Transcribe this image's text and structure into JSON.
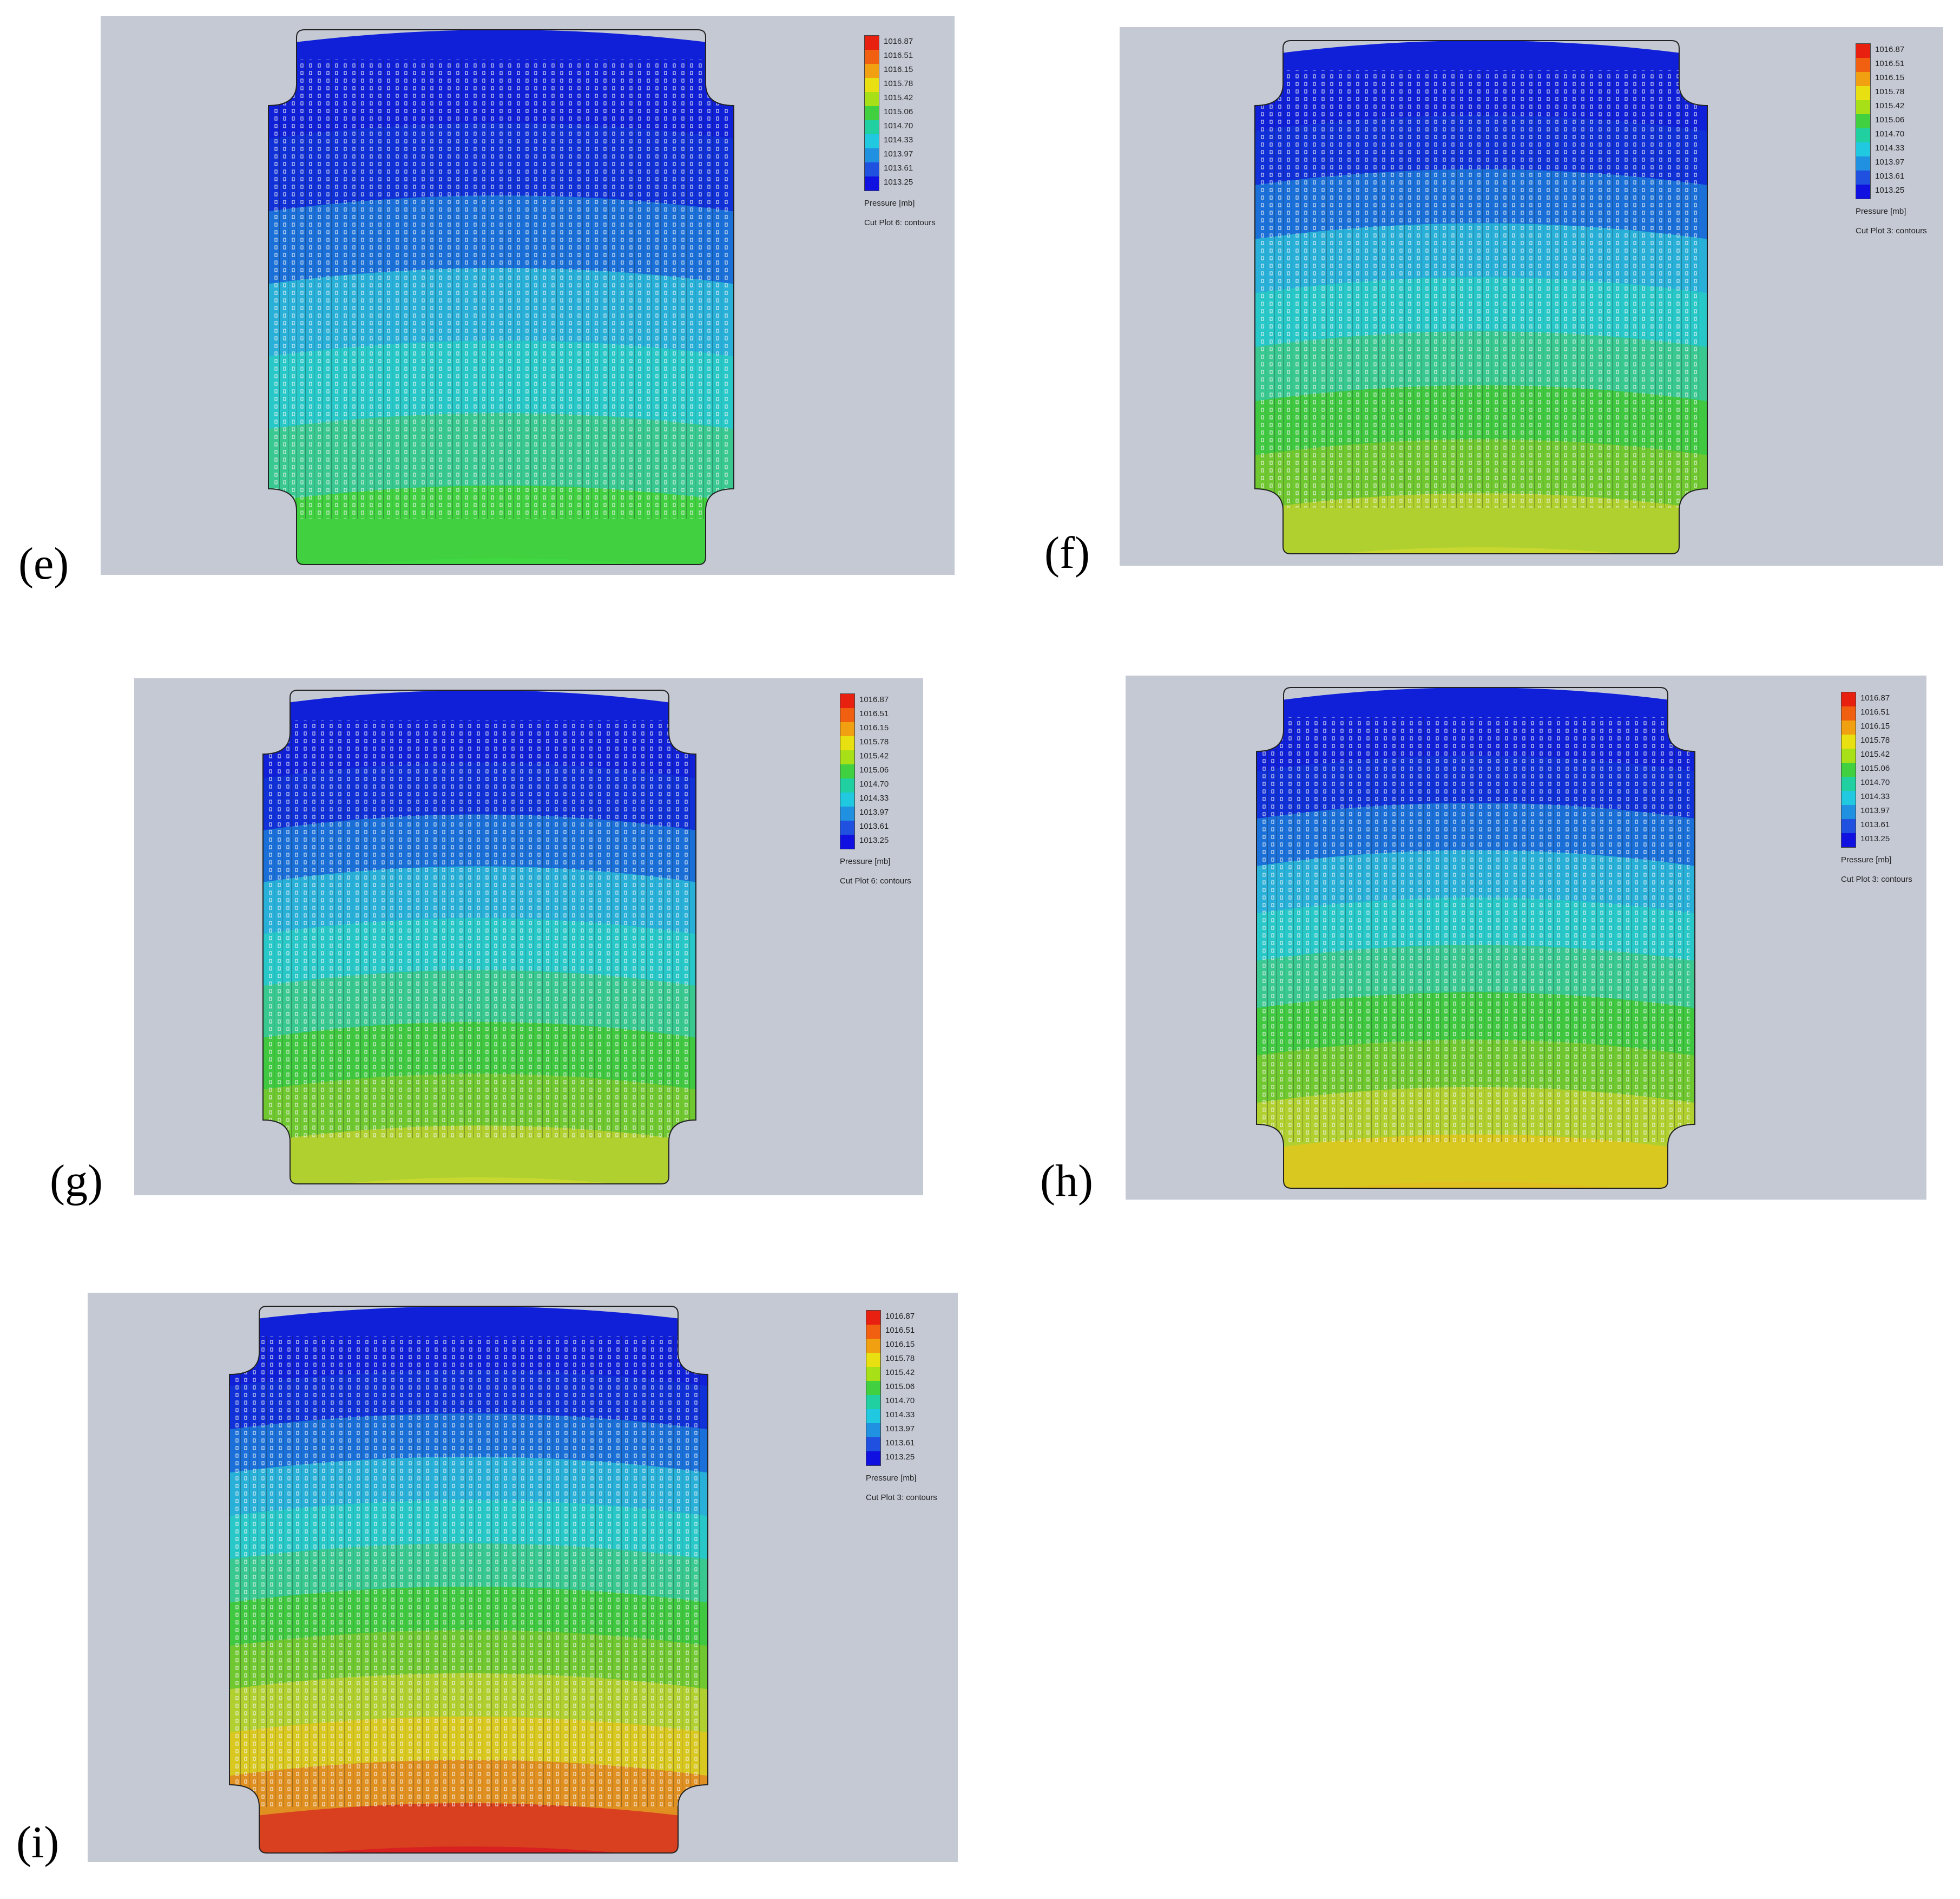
{
  "figure": {
    "panels": [
      {
        "id": "e",
        "label": "(e)",
        "legend_title": "Pressure [mb]",
        "plot_name": "Cut Plot 6: contours",
        "bands": [
          "#1020d8",
          "#1030d8",
          "#1a70d8",
          "#28b0d8",
          "#28c8c8",
          "#38c890",
          "#40d040",
          "#40d840"
        ]
      },
      {
        "id": "f",
        "label": "(f)",
        "legend_title": "Pressure [mb]",
        "plot_name": "Cut Plot 3: contours",
        "bands": [
          "#1020d8",
          "#1030d8",
          "#1a70d8",
          "#28b0d8",
          "#28c8c8",
          "#38c890",
          "#40c840",
          "#70c830",
          "#b0d030",
          "#c8d830"
        ]
      },
      {
        "id": "g",
        "label": "(g)",
        "legend_title": "Pressure [mb]",
        "plot_name": "Cut Plot 6: contours",
        "bands": [
          "#1020d8",
          "#1030d8",
          "#1a70d8",
          "#28b0d8",
          "#28c8c8",
          "#38c890",
          "#40c840",
          "#70c830",
          "#b0d030",
          "#c8d830"
        ]
      },
      {
        "id": "h",
        "label": "(h)",
        "legend_title": "Pressure [mb]",
        "plot_name": "Cut Plot 3: contours",
        "bands": [
          "#1020d8",
          "#1030d8",
          "#1a70d8",
          "#28b0d8",
          "#28c8c8",
          "#38c890",
          "#40c840",
          "#70c830",
          "#b0d030",
          "#d8c820",
          "#e0c020"
        ]
      },
      {
        "id": "i",
        "label": "(i)",
        "legend_title": "Pressure [mb]",
        "plot_name": "Cut Plot 3: contours",
        "bands": [
          "#1020d8",
          "#1030d8",
          "#1a70d8",
          "#28b0d8",
          "#28c8c8",
          "#38c890",
          "#40c840",
          "#70c830",
          "#b0d030",
          "#d8c820",
          "#e09020",
          "#d84020",
          "#d82020"
        ]
      }
    ],
    "legend_ticks": [
      "1016.87",
      "1016.51",
      "1016.15",
      "1015.78",
      "1015.42",
      "1015.06",
      "1014.70",
      "1014.33",
      "1013.97",
      "1013.61",
      "1013.25"
    ],
    "legend_colors": [
      "#e82010",
      "#f06010",
      "#f0a010",
      "#e8e010",
      "#a8e018",
      "#40d040",
      "#20d0a0",
      "#20c8e0",
      "#2090e0",
      "#2050e0",
      "#1010e0"
    ],
    "colors": {
      "background_panel": "#c5c9d4",
      "hole": "#f0f0f0"
    }
  }
}
